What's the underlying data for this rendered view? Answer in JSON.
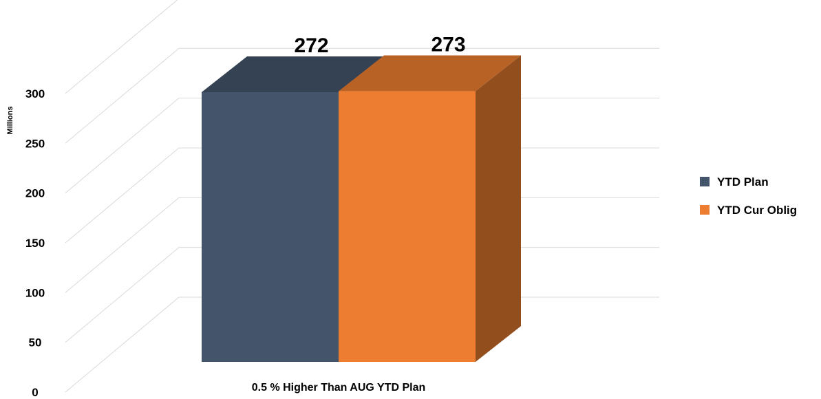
{
  "chart_data": {
    "type": "bar",
    "categories": [
      "0.5 % Higher Than AUG YTD Plan"
    ],
    "series": [
      {
        "name": "YTD Plan",
        "values": [
          272
        ],
        "color": "#44546a"
      },
      {
        "name": "YTD Cur Oblig",
        "values": [
          273
        ],
        "color": "#ed7d31"
      }
    ],
    "data_labels": [
      "272",
      "273"
    ],
    "ylabel": "Millions",
    "ylim": [
      0,
      300
    ],
    "yticks": [
      0,
      50,
      100,
      150,
      200,
      250,
      300
    ],
    "grid": true,
    "legend_position": "right",
    "style": "3d-column"
  }
}
